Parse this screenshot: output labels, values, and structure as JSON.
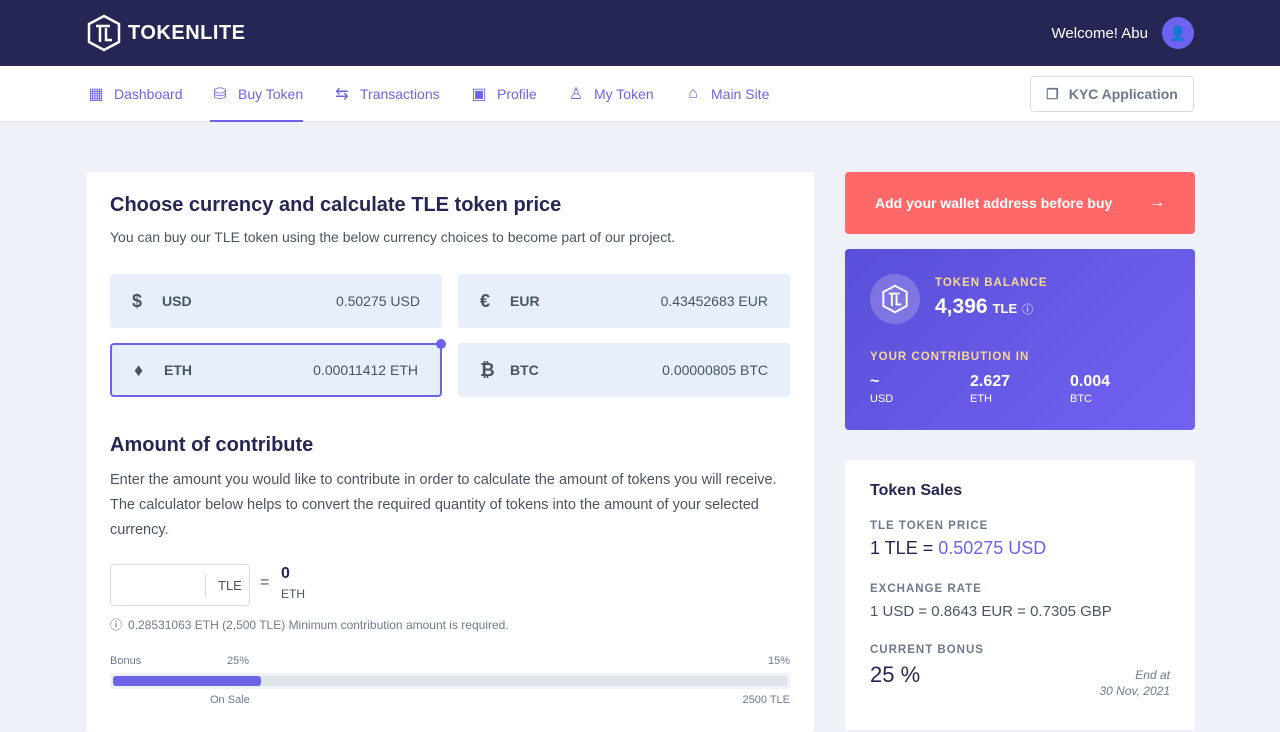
{
  "header": {
    "brand": "TOKENLITE",
    "welcome": "Welcome! Abu"
  },
  "nav": {
    "items": [
      {
        "label": "Dashboard"
      },
      {
        "label": "Buy Token"
      },
      {
        "label": "Transactions"
      },
      {
        "label": "Profile"
      },
      {
        "label": "My Token"
      },
      {
        "label": "Main Site"
      }
    ],
    "kyc": "KYC Application"
  },
  "main": {
    "title": "Choose currency and calculate TLE token price",
    "subtitle": "You can buy our TLE token using the below currency choices to become part of our project.",
    "currencies": [
      {
        "symbol": "$",
        "name": "USD",
        "value": "0.50275 USD"
      },
      {
        "symbol": "€",
        "name": "EUR",
        "value": "0.43452683 EUR"
      },
      {
        "symbol": "♦",
        "name": "ETH",
        "value": "0.00011412 ETH"
      },
      {
        "symbol": "₿",
        "name": "BTC",
        "value": "0.00000805 BTC"
      }
    ],
    "amount_title": "Amount of contribute",
    "amount_desc": "Enter the amount you would like to contribute in order to calculate the amount of tokens you will receive. The calculator below helps to convert the required quantity of tokens into the amount of your selected currency.",
    "input_unit": "TLE",
    "equals": "=",
    "result": "0",
    "result_unit": "ETH",
    "min_note": "0.28531063 ETH (2,500 TLE) Minimum contribution amount is required.",
    "bonus": {
      "label": "Bonus",
      "first": "25%",
      "last": "15%",
      "on_sale": "On Sale",
      "limit": "2500 TLE",
      "progress": 0.22
    }
  },
  "wallet": {
    "label": "Add your wallet address before buy"
  },
  "balance": {
    "title": "TOKEN BALANCE",
    "amount": "4,396",
    "unit": "TLE",
    "contrib_title": "YOUR CONTRIBUTION IN",
    "contrib": [
      {
        "value": "~",
        "unit": "USD"
      },
      {
        "value": "2.627",
        "unit": "ETH"
      },
      {
        "value": "0.004",
        "unit": "BTC"
      }
    ]
  },
  "sales": {
    "title": "Token Sales",
    "price_label": "TLE TOKEN PRICE",
    "price_prefix": "1 TLE =",
    "price_value": "0.50275 USD",
    "rate_label": "EXCHANGE RATE",
    "rate": "1 USD = 0.8643 EUR = 0.7305 GBP",
    "bonus_label": "CURRENT BONUS",
    "bonus": "25 %",
    "end_label": "End at",
    "end_date": "30 Nov, 2021"
  }
}
